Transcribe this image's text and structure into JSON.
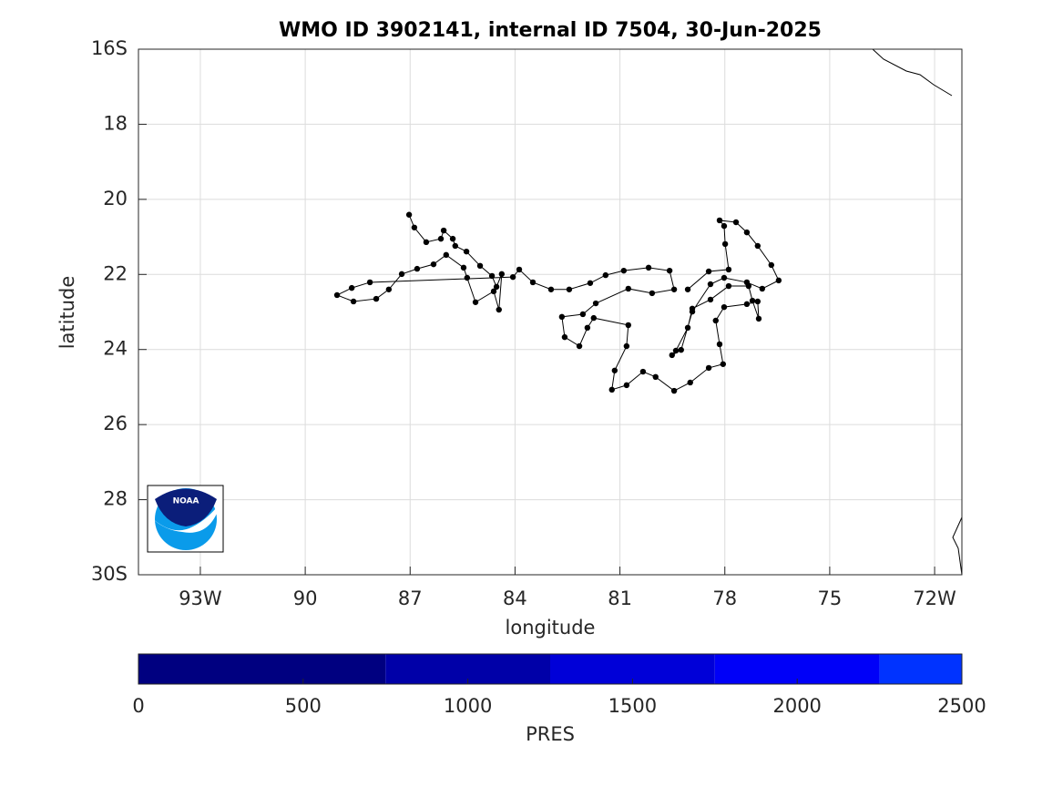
{
  "chart_data": {
    "type": "line",
    "title": "WMO ID 3902141, internal ID 7504, 30-Jun-2025",
    "x_label": "longitude",
    "y_label": "latitude",
    "xlim": [
      -94.77,
      -71.22
    ],
    "ylim": [
      -30,
      -16
    ],
    "xticks": [
      {
        "value": -93,
        "label": "93W"
      },
      {
        "value": -90,
        "label": "90"
      },
      {
        "value": -87,
        "label": "87"
      },
      {
        "value": -84,
        "label": "84"
      },
      {
        "value": -81,
        "label": "81"
      },
      {
        "value": -78,
        "label": "78"
      },
      {
        "value": -75,
        "label": "75"
      },
      {
        "value": -72,
        "label": "72W"
      }
    ],
    "yticks": [
      {
        "value": -16,
        "label": "16S"
      },
      {
        "value": -18,
        "label": "18"
      },
      {
        "value": -20,
        "label": "20"
      },
      {
        "value": -22,
        "label": "22"
      },
      {
        "value": -24,
        "label": "24"
      },
      {
        "value": -26,
        "label": "26"
      },
      {
        "value": -28,
        "label": "28"
      },
      {
        "value": -30,
        "label": "30S"
      }
    ],
    "grid": true,
    "series": [
      {
        "color": "#000000",
        "x": [
          -87.03,
          -86.88,
          -86.54,
          -86.12,
          -86.04,
          -85.78,
          -85.71,
          -85.39,
          -85.0,
          -84.66,
          -84.53,
          -84.38,
          -84.46,
          -84.61,
          -85.13,
          -85.37,
          -85.47,
          -85.97,
          -86.33,
          -86.8,
          -87.24,
          -87.61,
          -87.97,
          -88.62,
          -89.09,
          -88.67,
          -88.15,
          -84.06,
          -83.88,
          -83.49,
          -82.97,
          -82.45,
          -81.85,
          -81.41,
          -80.89,
          -80.18,
          -79.58,
          -79.45,
          -80.08,
          -80.76,
          -81.69,
          -82.06,
          -82.66,
          -82.58,
          -82.16,
          -81.93,
          -81.75,
          -80.76,
          -80.81,
          -81.15,
          -81.23,
          -80.81,
          -80.34,
          -79.98,
          -79.45,
          -78.99,
          -78.46,
          -78.05,
          -78.15,
          -78.26,
          -78.02,
          -77.37,
          -77.06,
          -77.03,
          -77.21,
          -77.32,
          -77.89,
          -78.41,
          -78.93,
          -79.06,
          -79.4,
          -79.51,
          -79.25,
          -78.93,
          -78.41,
          -78.02,
          -77.37,
          -76.93,
          -76.46,
          -76.67,
          -77.06,
          -77.37,
          -77.68,
          -78.15,
          -78.02,
          -77.99,
          -77.89,
          -78.46,
          -79.06
        ],
        "values": [
          -20.41,
          -20.75,
          -21.14,
          -21.05,
          -20.83,
          -21.05,
          -21.24,
          -21.39,
          -21.77,
          -22.04,
          -22.33,
          -21.99,
          -22.94,
          -22.45,
          -22.74,
          -22.09,
          -21.82,
          -21.48,
          -21.73,
          -21.85,
          -21.99,
          -22.4,
          -22.65,
          -22.72,
          -22.55,
          -22.36,
          -22.21,
          -22.07,
          -21.87,
          -22.21,
          -22.4,
          -22.4,
          -22.23,
          -22.02,
          -21.9,
          -21.82,
          -21.9,
          -22.4,
          -22.5,
          -22.38,
          -22.77,
          -23.06,
          -23.13,
          -23.67,
          -23.91,
          -23.42,
          -23.16,
          -23.35,
          -23.91,
          -24.56,
          -25.07,
          -24.95,
          -24.59,
          -24.73,
          -25.1,
          -24.88,
          -24.49,
          -24.39,
          -23.86,
          -23.23,
          -22.87,
          -22.79,
          -22.72,
          -23.18,
          -22.7,
          -22.31,
          -22.31,
          -22.67,
          -22.91,
          -23.42,
          -24.03,
          -24.15,
          -24.01,
          -22.99,
          -22.26,
          -22.09,
          -22.21,
          -22.38,
          -22.16,
          -21.75,
          -21.24,
          -20.88,
          -20.61,
          -20.56,
          -20.71,
          -21.19,
          -21.87,
          -21.92,
          -22.4
        ]
      }
    ],
    "colorbar": {
      "label": "PRES",
      "lim": [
        0,
        2500
      ],
      "ticks": [
        0,
        500,
        1000,
        1500,
        2000,
        2500
      ],
      "bands": [
        {
          "from": 0,
          "to": 750,
          "color": "#000080"
        },
        {
          "from": 750,
          "to": 1250,
          "color": "#0000a8"
        },
        {
          "from": 1250,
          "to": 1750,
          "color": "#0000d8"
        },
        {
          "from": 1750,
          "to": 2250,
          "color": "#0000f8"
        },
        {
          "from": 2250,
          "to": 2500,
          "color": "#0033ff"
        }
      ]
    }
  }
}
